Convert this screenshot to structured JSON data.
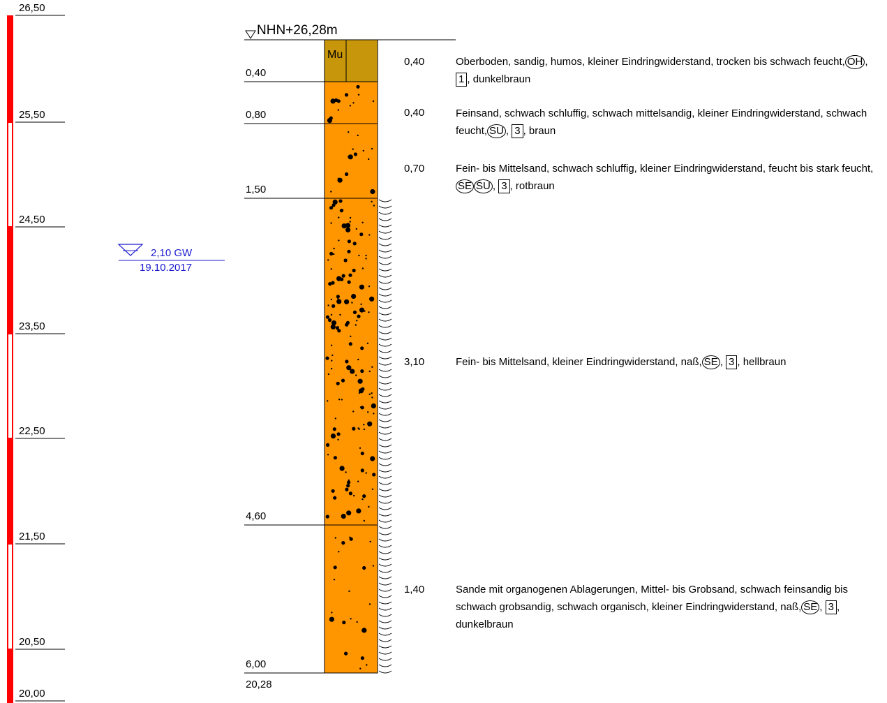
{
  "title": "NHN+26,28m",
  "scale_labels": [
    "26,50",
    "25,50",
    "24,50",
    "23,50",
    "22,50",
    "21,50",
    "20,50",
    "20,00"
  ],
  "groundwater": {
    "depth_label": "2,10 GW",
    "date": "19.10.2017"
  },
  "layers": [
    {
      "depth": "0,40",
      "thickness": "0,40",
      "text": "Oberboden, sandig, humos, kleiner Eindringwiderstand, trocken bis schwach feucht,",
      "circles": [
        "OH"
      ],
      "box": "1",
      "color_text": "dunkelbraun"
    },
    {
      "depth": "0,80",
      "thickness": "0,40",
      "text": "Feinsand, schwach schluffig, schwach mittelsandig, kleiner Eindringwiderstand, schwach feucht,",
      "circles": [
        "SU"
      ],
      "box": "3",
      "color_text": "braun"
    },
    {
      "depth": "1,50",
      "thickness": "0,70",
      "text": "Fein- bis Mittelsand, schwach schluffig, kleiner Eindringwiderstand, feucht bis stark feucht,",
      "circles": [
        "SE",
        "SU"
      ],
      "box": "3",
      "color_text": "rotbraun"
    },
    {
      "depth": "4,60",
      "thickness": "3,10",
      "text": "Fein- bis Mittelsand, kleiner Eindringwiderstand, naß,",
      "circles": [
        "SE"
      ],
      "box": "3",
      "color_text": "hellbraun"
    },
    {
      "depth": "6,00",
      "thickness": "1,40",
      "text": "Sande mit organogenen Ablagerungen, Mittel- bis Grobsand, schwach feinsandig bis schwach grobsandig, schwach organisch, kleiner Eindringwiderstand, naß,",
      "circles": [
        "SE"
      ],
      "box": "3",
      "color_text": "dunkelbraun"
    }
  ],
  "bottom_elevation": "20,28",
  "topsoil_symbol": "Mu",
  "colors": {
    "topsoil": "#c8960a",
    "sand": "#ff9600",
    "scale_red": "#ff0000",
    "groundwater": "#1a1ad0"
  }
}
